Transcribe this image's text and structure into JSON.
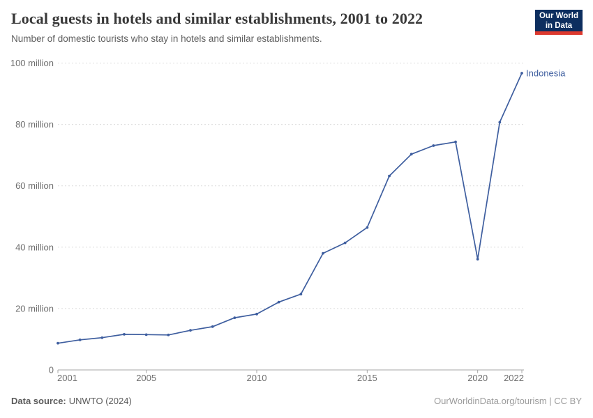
{
  "header": {
    "title": "Local guests in hotels and similar establishments, 2001 to 2022",
    "subtitle": "Number of domestic tourists who stay in hotels and similar establishments.",
    "logo": {
      "line1": "Our World",
      "line2": "in Data",
      "bg_color": "#0d2e5f",
      "accent_color": "#dd392e"
    }
  },
  "chart_data": {
    "type": "line",
    "title": "Local guests in hotels and similar establishments, 2001 to 2022",
    "subtitle": "Number of domestic tourists who stay in hotels and similar establishments.",
    "xlabel": "",
    "ylabel": "",
    "unit": "million guests",
    "x": [
      2001,
      2002,
      2003,
      2004,
      2005,
      2006,
      2007,
      2008,
      2009,
      2010,
      2011,
      2012,
      2013,
      2014,
      2015,
      2016,
      2017,
      2018,
      2019,
      2020,
      2021,
      2022
    ],
    "series": [
      {
        "name": "Indonesia",
        "color": "#3e5e9f",
        "values": [
          8.7,
          9.8,
          10.5,
          11.6,
          11.5,
          11.4,
          12.9,
          14.1,
          17.0,
          18.2,
          22.1,
          24.7,
          38.0,
          41.4,
          46.4,
          63.2,
          70.3,
          73.1,
          74.3,
          36.1,
          80.7,
          96.7
        ]
      }
    ],
    "ylim": [
      0,
      100
    ],
    "yticks": [
      {
        "value": 0,
        "label": "0"
      },
      {
        "value": 20,
        "label": "20 million"
      },
      {
        "value": 40,
        "label": "40 million"
      },
      {
        "value": 60,
        "label": "60 million"
      },
      {
        "value": 80,
        "label": "80 million"
      },
      {
        "value": 100,
        "label": "100 million"
      }
    ],
    "xticks": [
      2001,
      2005,
      2010,
      2015,
      2020,
      2022
    ],
    "grid": "horizontal-dashed",
    "legend_position": "end-of-line-label",
    "entity_label": "Indonesia",
    "colors": {
      "grid": "#dcdcdc",
      "axis": "#a5a5a5",
      "tick_text": "#6e6e6e"
    }
  },
  "footer": {
    "source_label": "Data source:",
    "source_value": "UNWTO (2024)",
    "credit": "OurWorldinData.org/tourism | CC BY"
  }
}
